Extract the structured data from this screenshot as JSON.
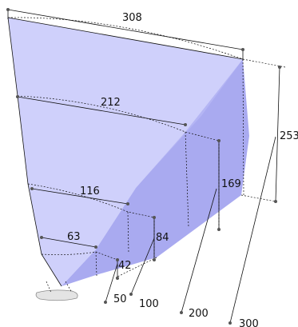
{
  "diagram": {
    "colors": {
      "face_light": "#cfd0fb",
      "face_dark": "#a9aaf0",
      "face_mid": "#bfc0f6",
      "line": "#111111",
      "dot": "#555555",
      "small_object": "#e4e4e4"
    },
    "top_dimension": "308",
    "mid_dimensions": [
      "212",
      "116",
      "63"
    ],
    "height_dimensions": [
      "253",
      "169",
      "84",
      "42"
    ],
    "leader_labels": [
      "50",
      "100",
      "200",
      "300"
    ]
  }
}
